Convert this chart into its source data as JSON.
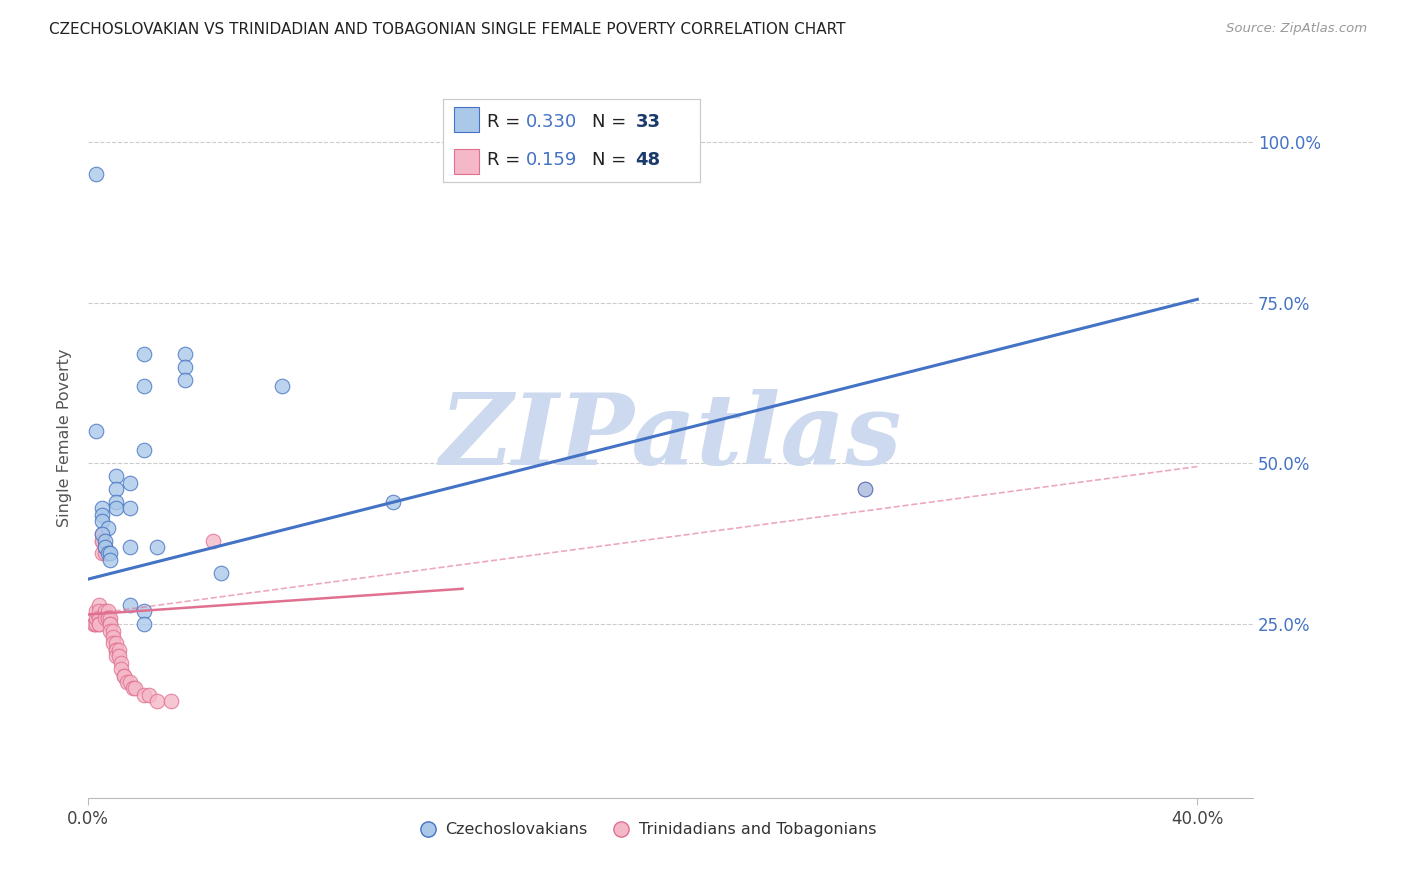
{
  "title": "CZECHOSLOVAKIAN VS TRINIDADIAN AND TOBAGONIAN SINGLE FEMALE POVERTY CORRELATION CHART",
  "source": "Source: ZipAtlas.com",
  "ylabel_label": "Single Female Poverty",
  "xlim": [
    0.0,
    0.42
  ],
  "ylim": [
    -0.02,
    1.1
  ],
  "y_tick_positions": [
    0.25,
    0.5,
    0.75,
    1.0
  ],
  "y_tick_labels": [
    "25.0%",
    "50.0%",
    "75.0%",
    "100.0%"
  ],
  "x_tick_positions": [
    0.0,
    0.4
  ],
  "x_tick_labels": [
    "0.0%",
    "40.0%"
  ],
  "blue_color": "#4472c4",
  "pink_color": "#e07090",
  "light_blue": "#aac8e8",
  "light_pink": "#f4b8c8",
  "grid_color": "#cccccc",
  "background_color": "#ffffff",
  "watermark": "ZIPatlas",
  "watermark_color": "#ccd9ee",
  "legend_R1": "0.330",
  "legend_N1": "33",
  "legend_R2": "0.159",
  "legend_N2": "48",
  "legend_label1": "Czechoslovakians",
  "legend_label2": "Trinidadians and Tobagonians",
  "blue_line": [
    0.0,
    0.32,
    0.4,
    0.755
  ],
  "pink_solid_line": [
    0.0,
    0.265,
    0.135,
    0.305
  ],
  "pink_dashed_line": [
    0.0,
    0.265,
    0.4,
    0.495
  ],
  "czecho_points": [
    [
      0.003,
      0.95
    ],
    [
      0.02,
      0.67
    ],
    [
      0.035,
      0.67
    ],
    [
      0.035,
      0.65
    ],
    [
      0.02,
      0.62
    ],
    [
      0.035,
      0.63
    ],
    [
      0.07,
      0.62
    ],
    [
      0.003,
      0.55
    ],
    [
      0.02,
      0.52
    ],
    [
      0.01,
      0.48
    ],
    [
      0.015,
      0.47
    ],
    [
      0.01,
      0.46
    ],
    [
      0.01,
      0.44
    ],
    [
      0.01,
      0.43
    ],
    [
      0.015,
      0.43
    ],
    [
      0.005,
      0.43
    ],
    [
      0.005,
      0.42
    ],
    [
      0.005,
      0.41
    ],
    [
      0.007,
      0.4
    ],
    [
      0.005,
      0.39
    ],
    [
      0.006,
      0.38
    ],
    [
      0.006,
      0.37
    ],
    [
      0.007,
      0.36
    ],
    [
      0.008,
      0.36
    ],
    [
      0.015,
      0.37
    ],
    [
      0.008,
      0.35
    ],
    [
      0.025,
      0.37
    ],
    [
      0.048,
      0.33
    ],
    [
      0.015,
      0.28
    ],
    [
      0.02,
      0.27
    ],
    [
      0.02,
      0.25
    ],
    [
      0.11,
      0.44
    ],
    [
      0.28,
      0.46
    ]
  ],
  "trini_points": [
    [
      0.002,
      0.25
    ],
    [
      0.002,
      0.25
    ],
    [
      0.003,
      0.25
    ],
    [
      0.003,
      0.26
    ],
    [
      0.003,
      0.27
    ],
    [
      0.004,
      0.28
    ],
    [
      0.004,
      0.27
    ],
    [
      0.004,
      0.26
    ],
    [
      0.004,
      0.25
    ],
    [
      0.004,
      0.25
    ],
    [
      0.005,
      0.39
    ],
    [
      0.005,
      0.38
    ],
    [
      0.005,
      0.38
    ],
    [
      0.005,
      0.36
    ],
    [
      0.006,
      0.36
    ],
    [
      0.006,
      0.37
    ],
    [
      0.006,
      0.27
    ],
    [
      0.006,
      0.26
    ],
    [
      0.007,
      0.27
    ],
    [
      0.007,
      0.26
    ],
    [
      0.007,
      0.26
    ],
    [
      0.008,
      0.26
    ],
    [
      0.008,
      0.25
    ],
    [
      0.008,
      0.25
    ],
    [
      0.008,
      0.24
    ],
    [
      0.009,
      0.24
    ],
    [
      0.009,
      0.23
    ],
    [
      0.009,
      0.22
    ],
    [
      0.01,
      0.22
    ],
    [
      0.01,
      0.21
    ],
    [
      0.01,
      0.21
    ],
    [
      0.01,
      0.2
    ],
    [
      0.011,
      0.21
    ],
    [
      0.011,
      0.2
    ],
    [
      0.012,
      0.19
    ],
    [
      0.012,
      0.18
    ],
    [
      0.013,
      0.17
    ],
    [
      0.013,
      0.17
    ],
    [
      0.014,
      0.16
    ],
    [
      0.015,
      0.16
    ],
    [
      0.016,
      0.15
    ],
    [
      0.017,
      0.15
    ],
    [
      0.02,
      0.14
    ],
    [
      0.022,
      0.14
    ],
    [
      0.025,
      0.13
    ],
    [
      0.03,
      0.13
    ],
    [
      0.045,
      0.38
    ],
    [
      0.28,
      0.46
    ]
  ]
}
